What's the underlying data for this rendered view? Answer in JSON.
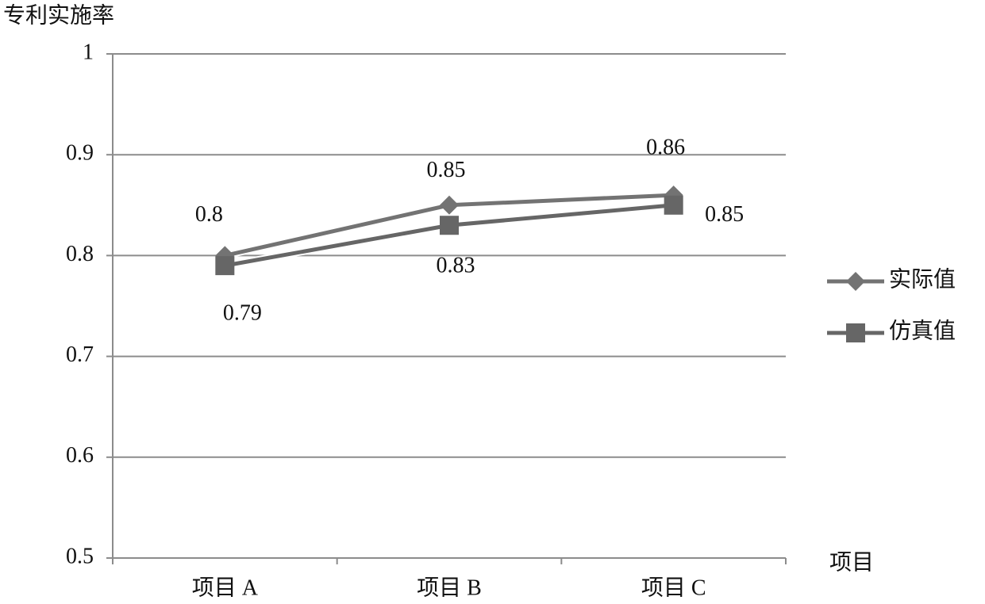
{
  "chart_data": {
    "type": "line",
    "y_label": "专利实施率",
    "x_label": "项目",
    "categories": [
      "项目 A",
      "项目 B",
      "项目 C"
    ],
    "series": [
      {
        "name": "实际值",
        "color": "#737373",
        "marker": "diamond",
        "values": [
          0.8,
          0.85,
          0.86
        ]
      },
      {
        "name": "仿真值",
        "color": "#666666",
        "marker": "square",
        "values": [
          0.79,
          0.83,
          0.85
        ]
      }
    ],
    "ylim": [
      0.5,
      1
    ],
    "yticks": [
      0.5,
      0.6,
      0.7,
      0.8,
      0.9,
      1
    ],
    "grid": true,
    "legend": "right",
    "data_labels": true
  }
}
